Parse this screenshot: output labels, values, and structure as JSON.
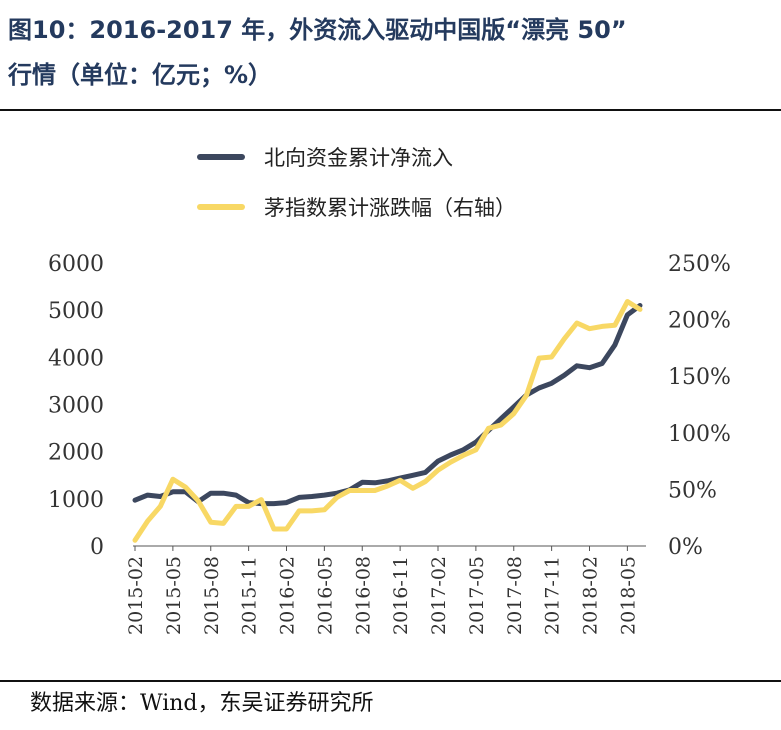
{
  "header": {
    "title_line1": "图10：2016-2017 年，外资流入驱动中国版“漂亮 50”",
    "title_line2": "行情（单位：亿元；%）"
  },
  "footer": {
    "source": "数据来源：Wind，东吴证券研究所"
  },
  "colors": {
    "north_flow": "#3c475e",
    "mao_index": "#f8d865",
    "title": "#243a5e"
  },
  "chart_data": {
    "type": "line",
    "title": "",
    "legend_position": "top-center",
    "grid": false,
    "x": [
      "2015-02",
      "2015-03",
      "2015-04",
      "2015-05",
      "2015-06",
      "2015-07",
      "2015-08",
      "2015-09",
      "2015-10",
      "2015-11",
      "2015-12",
      "2016-01",
      "2016-02",
      "2016-03",
      "2016-04",
      "2016-05",
      "2016-06",
      "2016-07",
      "2016-08",
      "2016-09",
      "2016-10",
      "2016-11",
      "2016-12",
      "2017-01",
      "2017-02",
      "2017-03",
      "2017-04",
      "2017-05",
      "2017-06",
      "2017-07",
      "2017-08",
      "2017-09",
      "2017-10",
      "2017-11",
      "2017-12",
      "2018-01",
      "2018-02",
      "2018-03",
      "2018-04",
      "2018-05",
      "2018-06"
    ],
    "xticks": [
      "2015-02",
      "2015-05",
      "2015-08",
      "2015-11",
      "2016-02",
      "2016-05",
      "2016-08",
      "2016-11",
      "2017-02",
      "2017-05",
      "2017-08",
      "2017-11",
      "2018-02",
      "2018-05"
    ],
    "y_left": {
      "ylim": [
        0,
        6000
      ],
      "ticks": [
        "0",
        "1000",
        "2000",
        "3000",
        "4000",
        "5000",
        "6000"
      ]
    },
    "y_right": {
      "ylim": [
        0,
        250
      ],
      "ticks": [
        "0%",
        "50%",
        "100%",
        "150%",
        "200%",
        "250%"
      ]
    },
    "series": [
      {
        "name": "北向资金累计净流入",
        "axis": "left",
        "values": [
          970,
          1080,
          1050,
          1150,
          1150,
          940,
          1120,
          1120,
          1080,
          920,
          900,
          900,
          920,
          1030,
          1050,
          1080,
          1120,
          1190,
          1350,
          1340,
          1380,
          1440,
          1500,
          1560,
          1800,
          1930,
          2040,
          2200,
          2450,
          2700,
          2950,
          3200,
          3350,
          3450,
          3620,
          3820,
          3780,
          3870,
          4260,
          4900,
          5100
        ]
      },
      {
        "name": "茅指数累计涨跌幅（右轴）",
        "axis": "right",
        "values": [
          5,
          22,
          35,
          59,
          52,
          40,
          21,
          20,
          35,
          35,
          41,
          15,
          15,
          31,
          31,
          32,
          43,
          49,
          49,
          49,
          53,
          58,
          51,
          57,
          67,
          74,
          80,
          85,
          104,
          107,
          117,
          133,
          166,
          167,
          183,
          197,
          192,
          194,
          195,
          216,
          209
        ]
      }
    ]
  }
}
